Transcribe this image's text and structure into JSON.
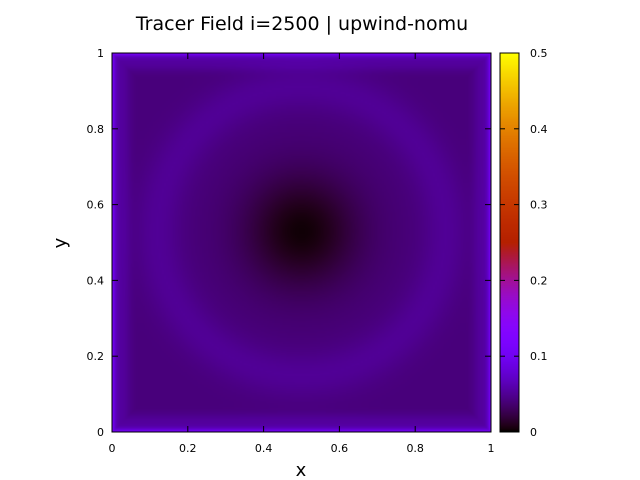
{
  "chart_data": {
    "type": "heatmap",
    "title": "Tracer Field i=2500 | upwind-nomu",
    "xlabel": "x",
    "ylabel": "y",
    "xlim": [
      0,
      1
    ],
    "ylim": [
      0,
      1
    ],
    "x_ticks": [
      "0",
      "0.2",
      "0.4",
      "0.6",
      "0.8",
      "1"
    ],
    "y_ticks": [
      "0",
      "0.2",
      "0.4",
      "0.6",
      "0.8",
      "1"
    ],
    "colorbar": {
      "range": [
        0,
        0.5
      ],
      "ticks": [
        "0",
        "0.1",
        "0.2",
        "0.3",
        "0.4",
        "0.5"
      ],
      "colormap": "gnuplot-pm3d"
    },
    "field": {
      "description_values": "tracer concentration",
      "center_value": 0.002,
      "center_location": [
        0.5,
        0.53
      ],
      "background_value": 0.04,
      "ring_value": 0.05,
      "boundary_value": 0.12,
      "corner_value": 0.1
    }
  }
}
